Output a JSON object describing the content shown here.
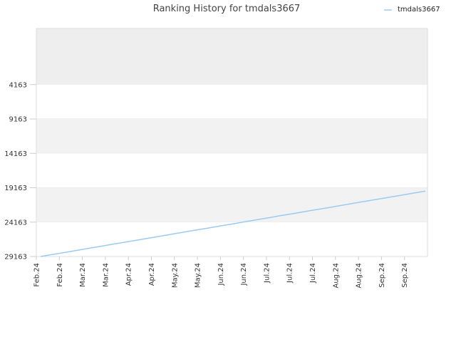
{
  "chart_data": {
    "type": "line",
    "title": "Ranking History for tmdals3667",
    "xlabel": "",
    "ylabel": "",
    "y_inverted": true,
    "ylim": [
      29163,
      -4000
    ],
    "y_ticks": [
      4163,
      9163,
      14163,
      19163,
      24163,
      29163
    ],
    "x_tick_labels": [
      "Feb.24",
      "Feb.24",
      "Mar.24",
      "Mar.24",
      "Apr.24",
      "Apr.24",
      "May.24",
      "May.24",
      "Jun.24",
      "Jun.24",
      "Jul.24",
      "Jul.24",
      "Jul.24",
      "Aug.24",
      "Aug.24",
      "Sep.24",
      "Sep.24"
    ],
    "grid": true,
    "legend_position": "top-right",
    "series": [
      {
        "name": "tmdals3667",
        "color": "#99ccf2",
        "values": [
          29163,
          28960,
          28760,
          28560,
          28360,
          28150,
          27950,
          27750,
          27550,
          27340,
          27140,
          26940,
          26740,
          26530,
          26330,
          26130,
          25930,
          25720,
          25520,
          25320,
          25120,
          24910,
          24710,
          24510,
          24310,
          24100,
          23900,
          23700,
          23500,
          23290,
          23090,
          22890,
          22690,
          22480,
          22280,
          22080,
          21880,
          21670,
          21470,
          21270,
          21070,
          20860,
          20660,
          20460,
          20260,
          20050,
          19850,
          19650
        ]
      }
    ]
  }
}
